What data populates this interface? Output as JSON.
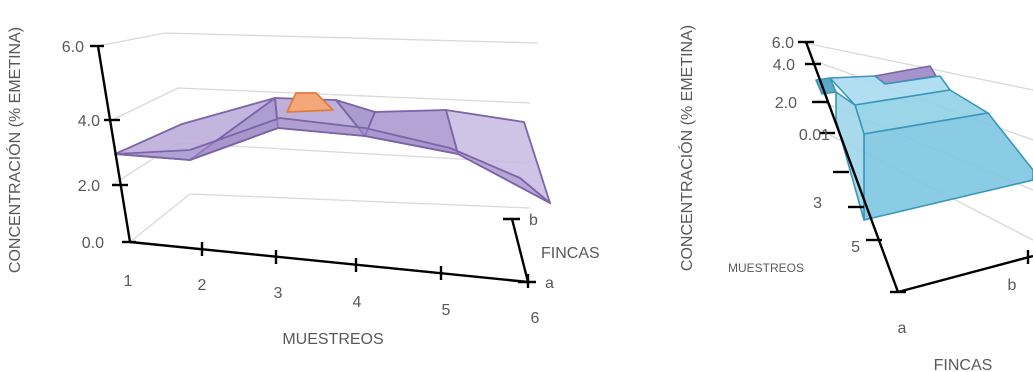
{
  "chart_data": [
    {
      "type": "surface",
      "ylabel": "CONCENTRACIÓN (% EMETINA)",
      "xlabel": "MUESTREOS",
      "zlabel": "FINCAS",
      "x": [
        "1",
        "2",
        "3",
        "4",
        "5",
        "6"
      ],
      "z": [
        "a",
        "b"
      ],
      "y_ticks": [
        "0.0",
        "2.0",
        "4.0",
        "6.0"
      ],
      "ylim": [
        0,
        6
      ],
      "series": [
        {
          "values": [
            2.8,
            2.8,
            3.8,
            3.8,
            3.6,
            3.2
          ]
        },
        {
          "values": [
            2.9,
            3.4,
            3.4,
            3.1,
            3.0,
            3.1
          ]
        }
      ],
      "colors": {
        "surface": "#a793cc",
        "edge": "#7b64a8",
        "peak": "#f4a87a",
        "peak_edge": "#e07b3e"
      },
      "grid": true,
      "view": "front"
    },
    {
      "type": "surface",
      "ylabel": "CONCENTRACIÓN (% EMETINA)",
      "xlabel": "FINCAS",
      "zlabel": "MUESTREOS",
      "x": [
        "a",
        "b"
      ],
      "z": [
        "1",
        "3",
        "5"
      ],
      "y_ticks": [
        "0.01",
        "2.0",
        "4.0",
        "6.0"
      ],
      "ylim": [
        0,
        6
      ],
      "colors": {
        "surface": "#7cc7e0",
        "edge": "#3a97bb",
        "purple": "#a793cc"
      },
      "grid": true,
      "view": "rotated"
    }
  ]
}
